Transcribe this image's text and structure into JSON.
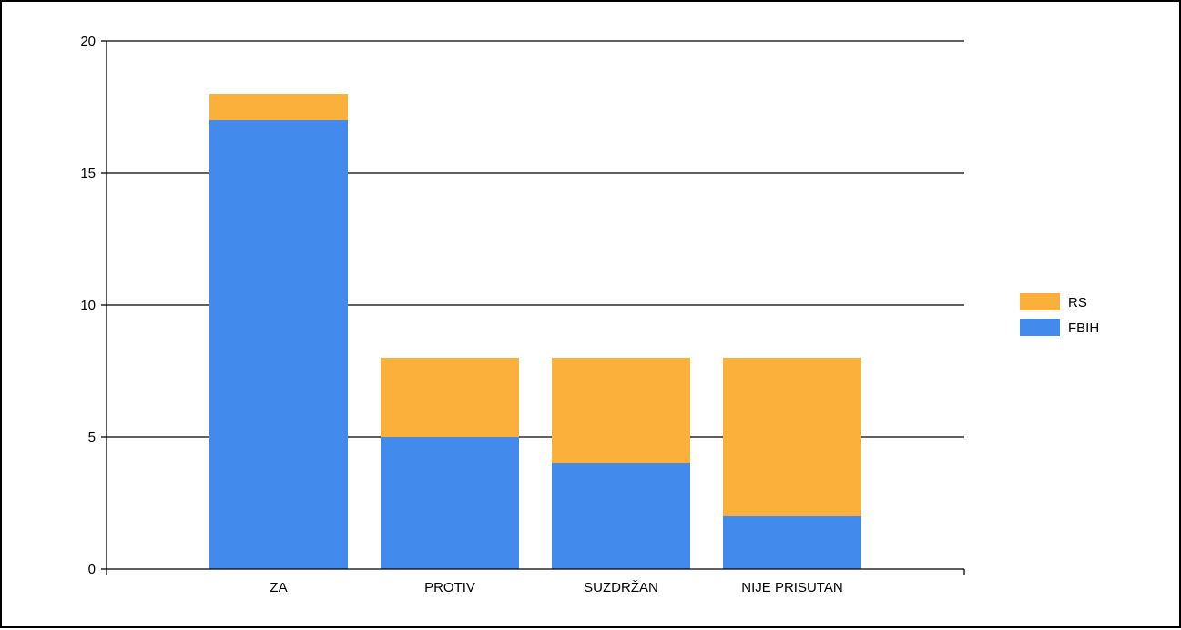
{
  "chart_data": {
    "type": "bar",
    "stacked": true,
    "title": "",
    "xlabel": "",
    "ylabel": "",
    "categories": [
      "ZA",
      "PROTIV",
      "SUZDRŽAN",
      "NIJE PRISUTAN"
    ],
    "series": [
      {
        "name": "FBIH",
        "color": "#428bed",
        "values": [
          17,
          5,
          4,
          2
        ]
      },
      {
        "name": "RS",
        "color": "#fbb03c",
        "values": [
          1,
          3,
          4,
          6
        ]
      }
    ],
    "ylim": [
      0,
      20
    ],
    "yticks": [
      "0",
      "5",
      "10",
      "15",
      "20"
    ],
    "grid": true,
    "legend_position": "right"
  }
}
